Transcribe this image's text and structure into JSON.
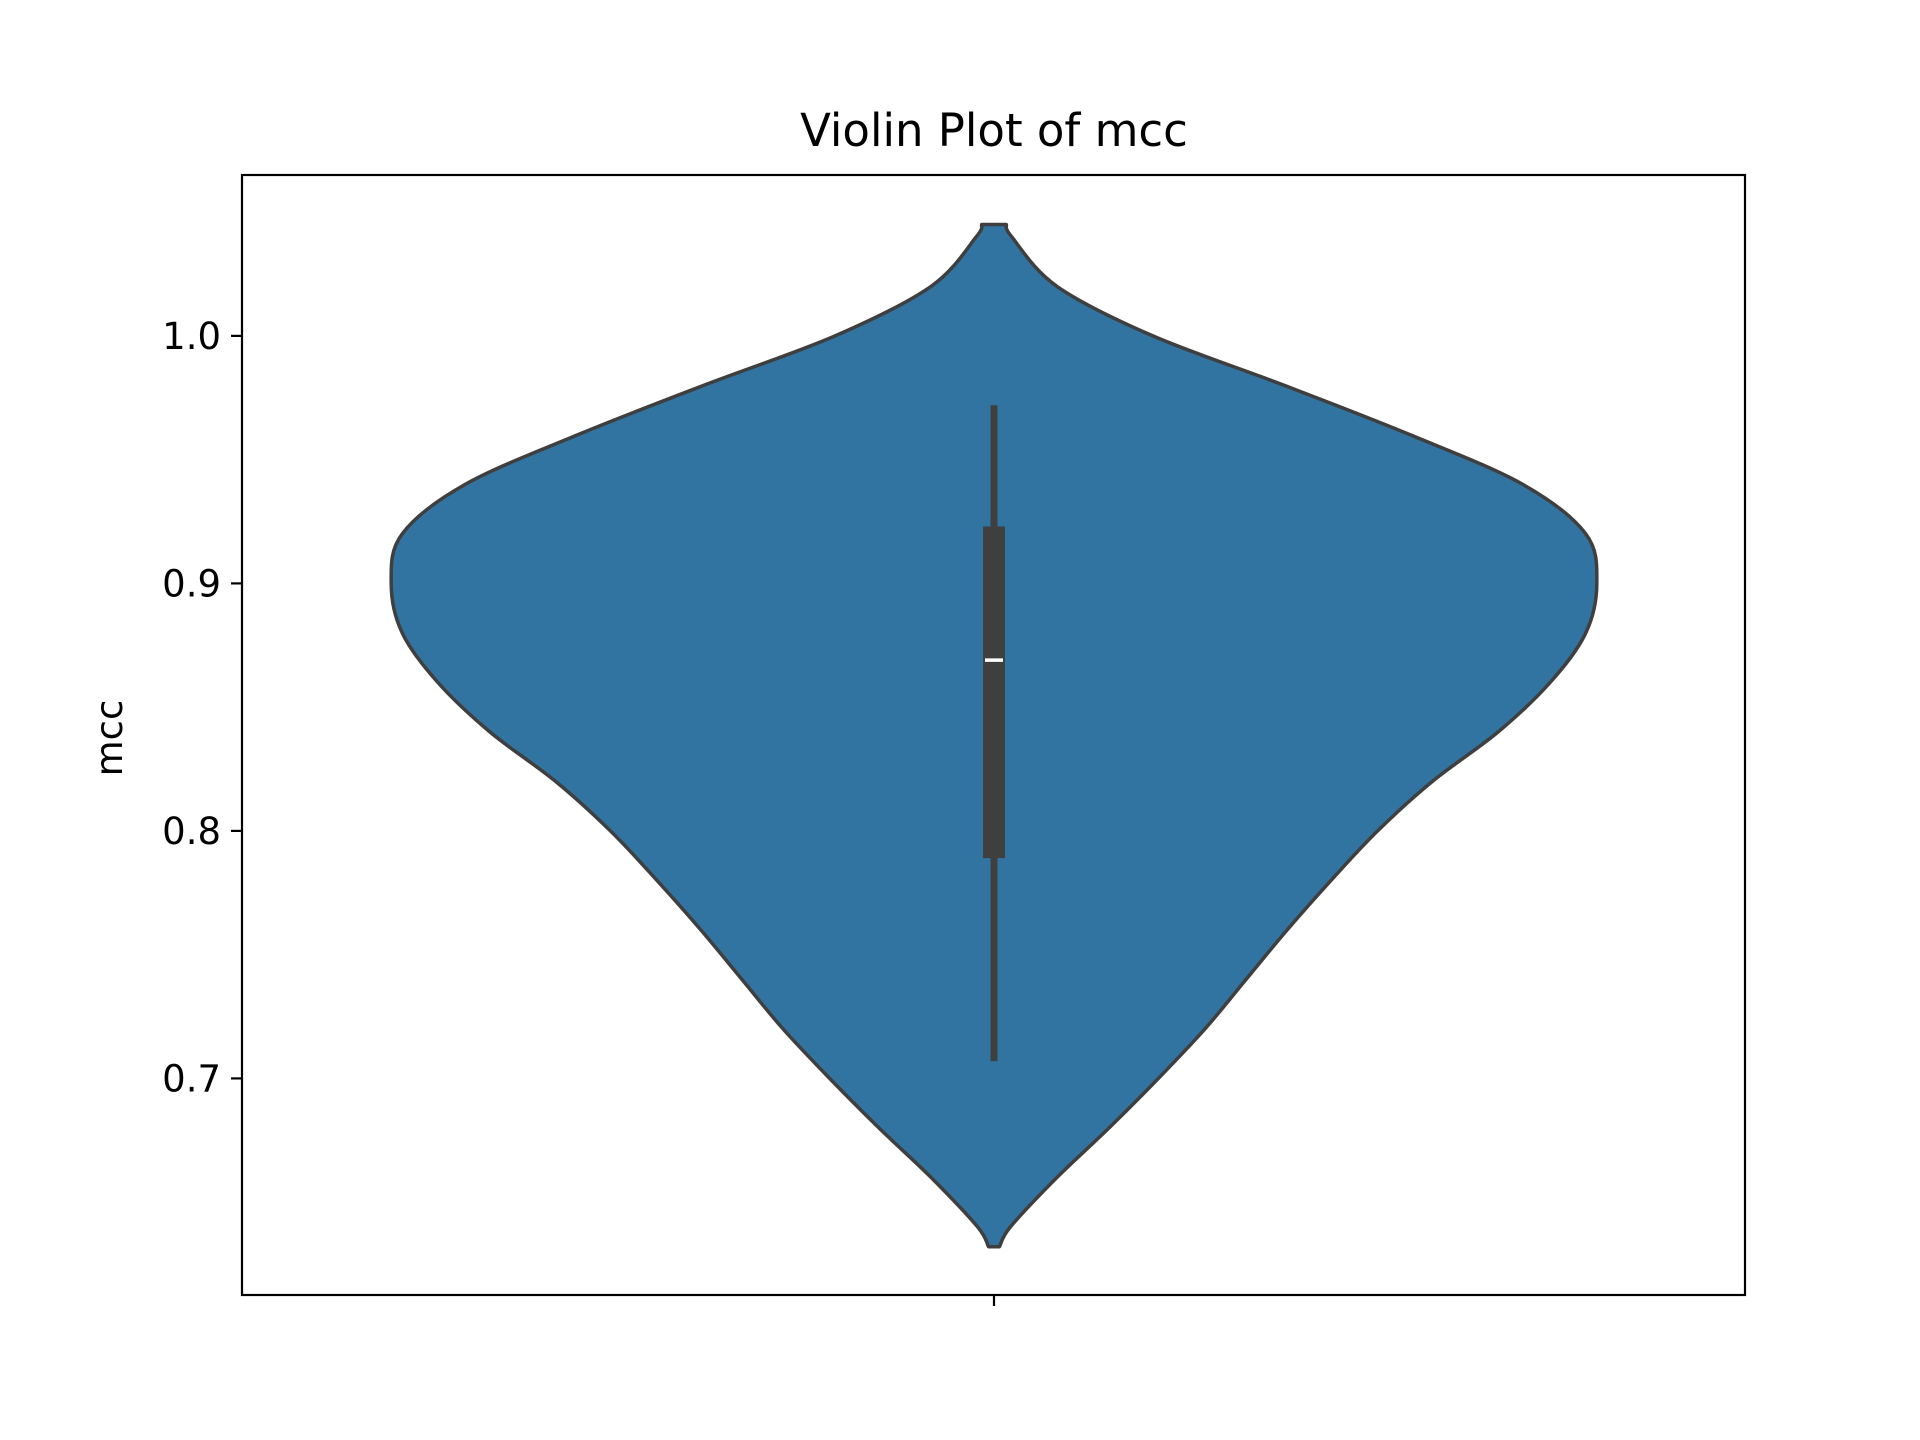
{
  "chart_data": {
    "type": "violin",
    "title": "Violin Plot of mcc",
    "xlabel": "",
    "ylabel": "mcc",
    "categories": [
      ""
    ],
    "ylim": [
      0.6125,
      1.065
    ],
    "yticks": [
      0.7,
      0.8,
      0.9,
      1.0
    ],
    "ytick_labels": [
      "0.7",
      "0.8",
      "0.9",
      "1.0"
    ],
    "grid": false,
    "legend": "none",
    "fill_color": "#3274a1",
    "edge_color": "#3f3f3f",
    "kde_range": [
      0.632,
      1.045
    ],
    "density_profile": {
      "y": [
        0.632,
        0.64,
        0.66,
        0.68,
        0.7,
        0.72,
        0.74,
        0.76,
        0.78,
        0.8,
        0.82,
        0.84,
        0.86,
        0.88,
        0.9,
        0.92,
        0.94,
        0.96,
        0.98,
        1.0,
        1.02,
        1.04,
        1.045
      ],
      "width": [
        0.02,
        0.06,
        0.23,
        0.42,
        0.6,
        0.77,
        0.92,
        1.07,
        1.23,
        1.4,
        1.6,
        1.84,
        2.03,
        2.16,
        2.2,
        2.16,
        1.93,
        1.52,
        1.06,
        0.58,
        0.23,
        0.065,
        0.045
      ]
    },
    "box": {
      "whisker_low": 0.707,
      "q1": 0.789,
      "median": 0.869,
      "q3": 0.923,
      "whisker_high": 0.972
    }
  }
}
